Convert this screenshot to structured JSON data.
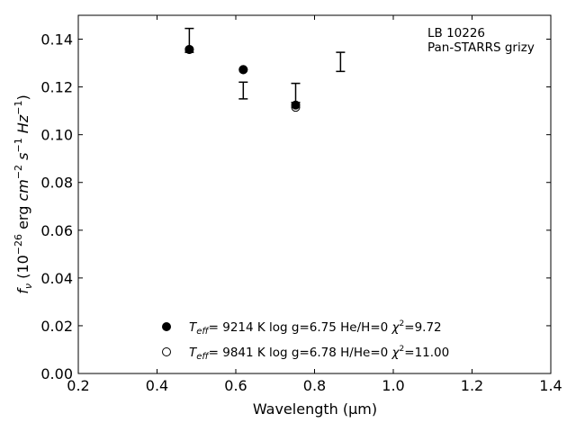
{
  "chart_data": {
    "type": "scatter",
    "title": "",
    "xlabel": "Wavelength (μm)",
    "ylabel": "f_ν (10^-26 erg cm^-2 s^-1 Hz^-1)",
    "xlim": [
      0.2,
      1.4
    ],
    "ylim": [
      0.0,
      0.15
    ],
    "x_ticks": [
      "0.2",
      "0.4",
      "0.6",
      "0.8",
      "1.0",
      "1.2",
      "1.4"
    ],
    "y_ticks": [
      "0.00",
      "0.02",
      "0.04",
      "0.06",
      "0.08",
      "0.10",
      "0.12",
      "0.14"
    ],
    "grid": false,
    "annotation": [
      "LB 10226",
      "Pan-STARRS grizy"
    ],
    "observed": [
      {
        "x": 0.482,
        "y": 0.1395,
        "err": 0.005
      },
      {
        "x": 0.619,
        "y": 0.1185,
        "err": 0.0035
      },
      {
        "x": 0.752,
        "y": 0.1175,
        "err": 0.004
      },
      {
        "x": 0.866,
        "y": 0.1305,
        "err": 0.004
      }
    ],
    "series": [
      {
        "name": "Teff=  9214 K  log g=6.75  He/H=0  χ2=9.72",
        "marker": "filled",
        "x": [
          0.482,
          0.619,
          0.752
        ],
        "y": [
          0.1357,
          0.1273,
          0.1124
        ]
      },
      {
        "name": "Teff=  9841 K  log g=6.78  H/He=0  χ2=11.00",
        "marker": "open",
        "x": [
          0.482,
          0.619,
          0.752
        ],
        "y": [
          0.1357,
          0.1272,
          0.1115
        ]
      }
    ],
    "legend": [
      {
        "marker": "filled",
        "teff": "9214 K",
        "logg": "log g=6.75",
        "comp": "He/H=0",
        "chi2": "9.72"
      },
      {
        "marker": "open",
        "teff": "9841 K",
        "logg": "log g=6.78",
        "comp": "H/He=0",
        "chi2": "11.00"
      }
    ],
    "legend_placement": "lower-center"
  }
}
